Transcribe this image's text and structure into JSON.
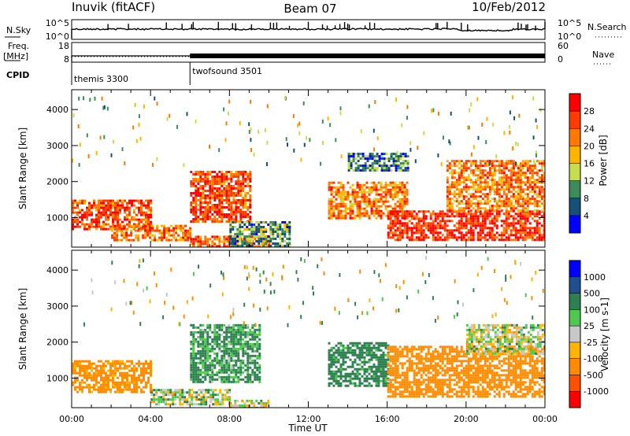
{
  "header": {
    "station": "Inuvik (fitACF)",
    "beam": "Beam 07",
    "date": "10/Feb/2012"
  },
  "strip": {
    "nsky_label": "N.Sky",
    "nsky_ticks": [
      "10^5",
      "10^0"
    ],
    "nsearch_label": "N.Search",
    "freq_label": "Freq.",
    "freq_unit": "[MHz]",
    "freq_ticks": [
      "18",
      "8"
    ],
    "nave_label": "Nave",
    "nave_ticks": [
      "60",
      "0"
    ],
    "cpid_label": "CPID",
    "cpid_segments": [
      {
        "name": "themis 3300",
        "start_hour": 0,
        "end_hour": 6
      },
      {
        "name": "twofsound 3501",
        "start_hour": 6,
        "end_hour": 24
      }
    ]
  },
  "x_axis": {
    "label": "Time UT",
    "tick_labels": [
      "00:00",
      "04:00",
      "08:00",
      "12:00",
      "16:00",
      "20:00",
      "00:00"
    ]
  },
  "chart_data": [
    {
      "type": "heatmap",
      "name": "power",
      "ylabel": "Slant Range [km]",
      "xlim_hours": [
        0,
        24
      ],
      "ylim_km": [
        180,
        4550
      ],
      "y_ticks": [
        1000,
        2000,
        3000,
        4000
      ],
      "colorbar_label": "Power [dB]",
      "colorbar_ticks": [
        "28",
        "24",
        "20",
        "16",
        "12",
        "8",
        "4"
      ],
      "colorbar_colors": [
        "#ff0000",
        "#ff3c00",
        "#ff7800",
        "#ffb400",
        "#c8dc50",
        "#3c8c5a",
        "#145078",
        "#0000ff"
      ],
      "regions": [
        {
          "t0": 0.0,
          "t1": 4.0,
          "r0": 700,
          "r1": 1500,
          "value": 26
        },
        {
          "t0": 2.0,
          "t1": 6.0,
          "r0": 400,
          "r1": 800,
          "value": 22
        },
        {
          "t0": 6.0,
          "t1": 10.0,
          "r0": 200,
          "r1": 500,
          "value": 24
        },
        {
          "t0": 6.0,
          "t1": 9.0,
          "r0": 900,
          "r1": 2300,
          "value": 26
        },
        {
          "t0": 8.0,
          "t1": 11.0,
          "r0": 200,
          "r1": 900,
          "value": 10
        },
        {
          "t0": 13.0,
          "t1": 17.0,
          "r0": 1000,
          "r1": 2000,
          "value": 22
        },
        {
          "t0": 14.0,
          "t1": 17.0,
          "r0": 2300,
          "r1": 2800,
          "value": 8
        },
        {
          "t0": 16.0,
          "t1": 24.0,
          "r0": 400,
          "r1": 1200,
          "value": 28
        },
        {
          "t0": 19.0,
          "t1": 24.0,
          "r0": 1200,
          "r1": 2600,
          "value": 22
        }
      ]
    },
    {
      "type": "heatmap",
      "name": "velocity",
      "ylabel": "Slant Range [km]",
      "xlim_hours": [
        0,
        24
      ],
      "ylim_km": [
        180,
        4550
      ],
      "y_ticks": [
        1000,
        2000,
        3000,
        4000
      ],
      "colorbar_label": "Velocity [m s-1]",
      "colorbar_ticks": [
        "1000",
        "500",
        "100",
        "25",
        "-25",
        "-100",
        "-500",
        "-1000"
      ],
      "colorbar_colors": [
        "#0000ff",
        "#1e5090",
        "#2d8050",
        "#50c850",
        "#c8c8c8",
        "#ffb400",
        "#ff8c00",
        "#ff5000",
        "#ff0000"
      ],
      "regions": [
        {
          "t0": 0.0,
          "t1": 4.0,
          "r0": 600,
          "r1": 1500,
          "value": -200
        },
        {
          "t0": 4.0,
          "t1": 8.0,
          "r0": 300,
          "r1": 700,
          "value": 10
        },
        {
          "t0": 6.0,
          "t1": 9.5,
          "r0": 900,
          "r1": 2500,
          "value": 150
        },
        {
          "t0": 8.0,
          "t1": 10.0,
          "r0": 200,
          "r1": 400,
          "value": 10
        },
        {
          "t0": 13.0,
          "t1": 16.0,
          "r0": 800,
          "r1": 2000,
          "value": 200
        },
        {
          "t0": 16.0,
          "t1": 24.0,
          "r0": 500,
          "r1": 1900,
          "value": -300
        },
        {
          "t0": 20.0,
          "t1": 24.0,
          "r0": 1700,
          "r1": 2500,
          "value": 10
        }
      ]
    }
  ]
}
